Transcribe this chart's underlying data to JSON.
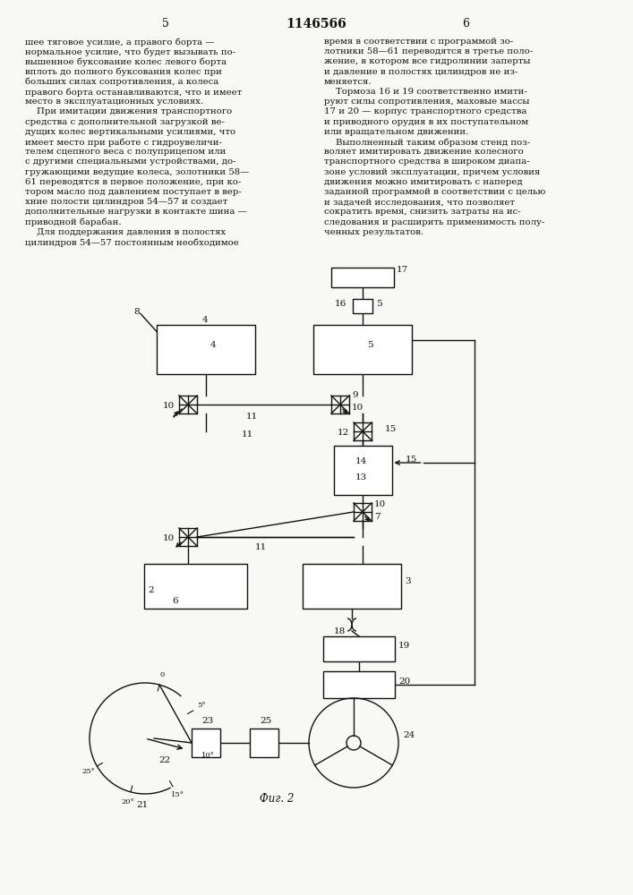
{
  "page_title": "1146566",
  "col_left_num": "5",
  "col_right_num": "6",
  "fig_label": "Фиг. 2",
  "bg_color": "#f8f8f4",
  "text_color": "#111111",
  "left_text_lines": [
    "шее тяговое усилие, а правого борта —",
    "нормальное усилие, что будет вызывать по-",
    "вышенное буксование колес левого борта",
    "вплоть до полного буксования колес при",
    "больших силах сопротивления, а колеса",
    "правого борта останавливаются, что и имеет",
    "место в эксплуатационных условиях.",
    "    При имитации движения транспортного",
    "средства с дополнительной загрузкой ве-",
    "дущих колес вертикальными усилиями, что",
    "имеет место при работе с гидроувеличи-",
    "телем сцепного веса с полуприцепом или",
    "с другими специальными устройствами, до-",
    "гружающими ведущие колеса, золотники 58—",
    "61 переводятся в первое положение, при ко-",
    "тором масло под давлением поступает в вер-",
    "хние полости цилиндров 54—57 и создает",
    "дополнительные нагрузки в контакте шина —",
    "приводной барабан.",
    "    Для поддержания давления в полостях",
    "цилиндров 54—57 постоянным необходимое"
  ],
  "right_text_lines": [
    "время в соответствии с программой зо-",
    "лотники 58—61 переводятся в третье поло-",
    "жение, в котором все гидролинии заперты",
    "и давление в полостях цилиндров не из-",
    "меняется.",
    "    Тормоза 16 и 19 соответственно имити-",
    "руют силы сопротивления, маховые массы",
    "17 и 20 — корпус транспортного средства",
    "и приводного орудия в их поступательном",
    "или вращательном движении.",
    "    Выполненный таким образом стенд поз-",
    "воляет имитировать движение колесного",
    "транспортного средства в широком диапа-",
    "зоне условий эксплуатации, причем условия",
    "движения можно имитировать с наперед",
    "заданной программой в соответствии с целью",
    "и задачей исследования, что позволяет",
    "сократить время, снизить затраты на ис-",
    "следования и расширить применимость полу-",
    "ченных результатов."
  ]
}
